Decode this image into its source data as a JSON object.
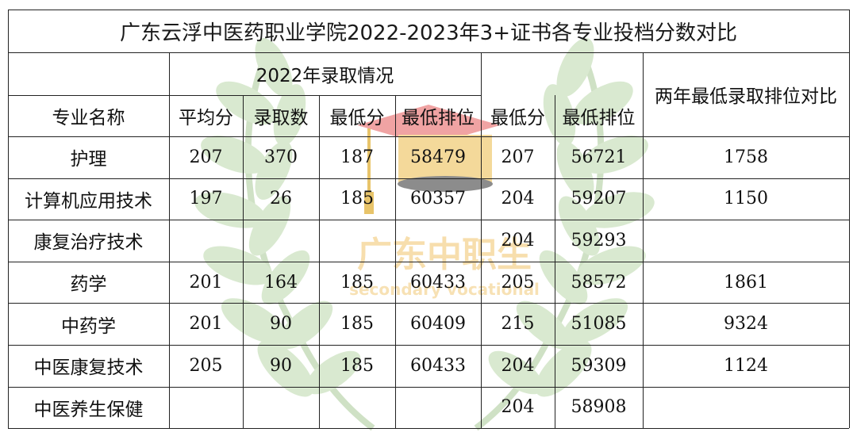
{
  "title": "广东云浮中医药职业学院2022-2023年3+证书各专业投档分数对比",
  "group_2022": "2022年录取情况",
  "compare_header": "两年最低录取排位对比",
  "headers": [
    "专业名称",
    "平均分",
    "录取数",
    "最低分",
    "最低排位",
    "最低分",
    "最低排位"
  ],
  "rows": [
    [
      "护理",
      "207",
      "370",
      "187",
      "58479",
      "207",
      "56721",
      "1758"
    ],
    [
      "计算机应用技术",
      "197",
      "26",
      "185",
      "60357",
      "204",
      "59207",
      "1150"
    ],
    [
      "康复治疗技术",
      "",
      "",
      "",
      "",
      "204",
      "59293",
      ""
    ],
    [
      "药学",
      "201",
      "164",
      "185",
      "60433",
      "205",
      "58572",
      "1861"
    ],
    [
      "中药学",
      "201",
      "90",
      "185",
      "60409",
      "215",
      "51085",
      "9324"
    ],
    [
      "中医康复技术",
      "205",
      "90",
      "185",
      "60433",
      "204",
      "59309",
      "1124"
    ],
    [
      "中医养生保健",
      "",
      "",
      "",
      "",
      "204",
      "58908",
      ""
    ]
  ],
  "watermark": {
    "text": "广东中职生",
    "subtext": "secondary vocational",
    "color": "#f0c46a"
  },
  "colors": {
    "leaf": "#cfe3c3",
    "cap_top": "#f2a0a0",
    "cap_body": "#f3d898",
    "cap_base": "#8a8a8a",
    "tassel": "#e8c46a"
  }
}
